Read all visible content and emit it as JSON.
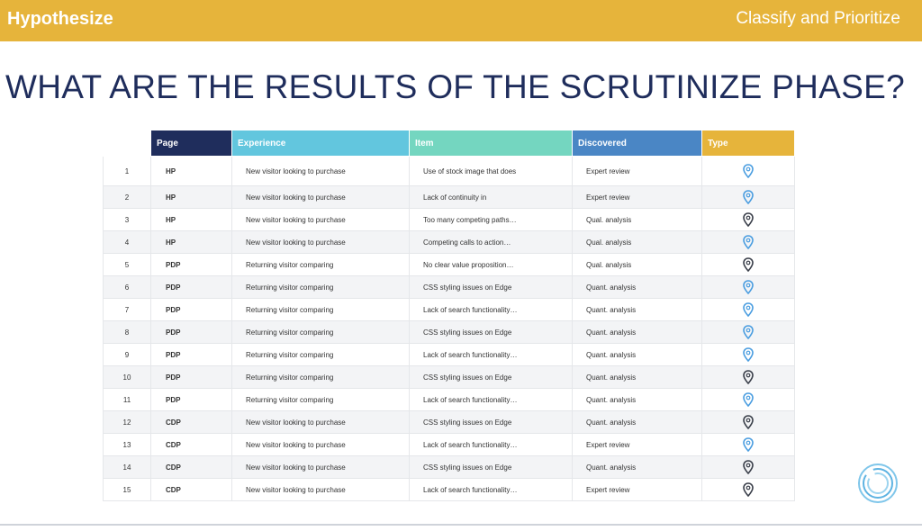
{
  "header": {
    "left_label": "Hypothesize",
    "right_label": "Classify and Prioritize"
  },
  "title": "WHAT ARE THE RESULTS OF THE SCRUTINIZE PHASE?",
  "table": {
    "columns": [
      {
        "label": "",
        "color": "#ffffff"
      },
      {
        "label": "Page",
        "color": "#1f2d5c"
      },
      {
        "label": "Experience",
        "color": "#62c6de"
      },
      {
        "label": "Item",
        "color": "#74d6c0"
      },
      {
        "label": "Discovered",
        "color": "#4a86c5"
      },
      {
        "label": "Type",
        "color": "#e6b43b"
      }
    ],
    "rows": [
      {
        "num": "1",
        "page": "HP",
        "experience": "New visitor looking to purchase",
        "item": "Use of stock image that does",
        "discovered": "Expert review",
        "type_icon": "location-pin-blue-icon"
      },
      {
        "num": "2",
        "page": "HP",
        "experience": "New visitor looking to purchase",
        "item": "Lack of continuity in",
        "discovered": "Expert review",
        "type_icon": "location-pin-blue-icon"
      },
      {
        "num": "3",
        "page": "HP",
        "experience": "New visitor looking to purchase",
        "item": "Too many competing paths…",
        "discovered": "Qual. analysis",
        "type_icon": "location-pin-dark-icon"
      },
      {
        "num": "4",
        "page": "HP",
        "experience": "New visitor looking to purchase",
        "item": "Competing calls to action…",
        "discovered": "Qual. analysis",
        "type_icon": "location-pin-blue-icon"
      },
      {
        "num": "5",
        "page": "PDP",
        "experience": "Returning visitor comparing",
        "item": "No clear value proposition…",
        "discovered": "Qual. analysis",
        "type_icon": "location-pin-dark-icon"
      },
      {
        "num": "6",
        "page": "PDP",
        "experience": "Returning visitor comparing",
        "item": "CSS styling issues on Edge",
        "discovered": "Quant. analysis",
        "type_icon": "location-pin-blue-icon"
      },
      {
        "num": "7",
        "page": "PDP",
        "experience": "Returning visitor comparing",
        "item": "Lack of search functionality…",
        "discovered": "Quant. analysis",
        "type_icon": "location-pin-blue-icon"
      },
      {
        "num": "8",
        "page": "PDP",
        "experience": "Returning visitor comparing",
        "item": "CSS styling issues on Edge",
        "discovered": "Quant. analysis",
        "type_icon": "location-pin-blue-icon"
      },
      {
        "num": "9",
        "page": "PDP",
        "experience": "Returning visitor comparing",
        "item": "Lack of search functionality…",
        "discovered": "Quant. analysis",
        "type_icon": "location-pin-blue-icon"
      },
      {
        "num": "10",
        "page": "PDP",
        "experience": "Returning visitor comparing",
        "item": "CSS styling issues on Edge",
        "discovered": "Quant. analysis",
        "type_icon": "location-pin-dark-icon"
      },
      {
        "num": "11",
        "page": "PDP",
        "experience": "Returning visitor comparing",
        "item": "Lack of search functionality…",
        "discovered": "Quant. analysis",
        "type_icon": "location-pin-blue-icon"
      },
      {
        "num": "12",
        "page": "CDP",
        "experience": "New visitor looking to purchase",
        "item": "CSS styling issues on Edge",
        "discovered": "Quant. analysis",
        "type_icon": "location-pin-dark-icon"
      },
      {
        "num": "13",
        "page": "CDP",
        "experience": "New visitor looking to purchase",
        "item": "Lack of search functionality…",
        "discovered": "Expert review",
        "type_icon": "location-pin-blue-icon"
      },
      {
        "num": "14",
        "page": "CDP",
        "experience": "New visitor looking to purchase",
        "item": "CSS styling issues on Edge",
        "discovered": "Quant. analysis",
        "type_icon": "location-pin-dark-icon"
      },
      {
        "num": "15",
        "page": "CDP",
        "experience": "New visitor looking to purchase",
        "item": "Lack of search functionality…",
        "discovered": "Expert review",
        "type_icon": "location-pin-dark-icon"
      }
    ]
  },
  "colors": {
    "header_bar": "#e6b43b",
    "title_text": "#1f2d5c",
    "pin_blue": "#4a9de0",
    "pin_dark": "#3a3f4a"
  },
  "logo_icon": "concentric-circles-logo-icon"
}
